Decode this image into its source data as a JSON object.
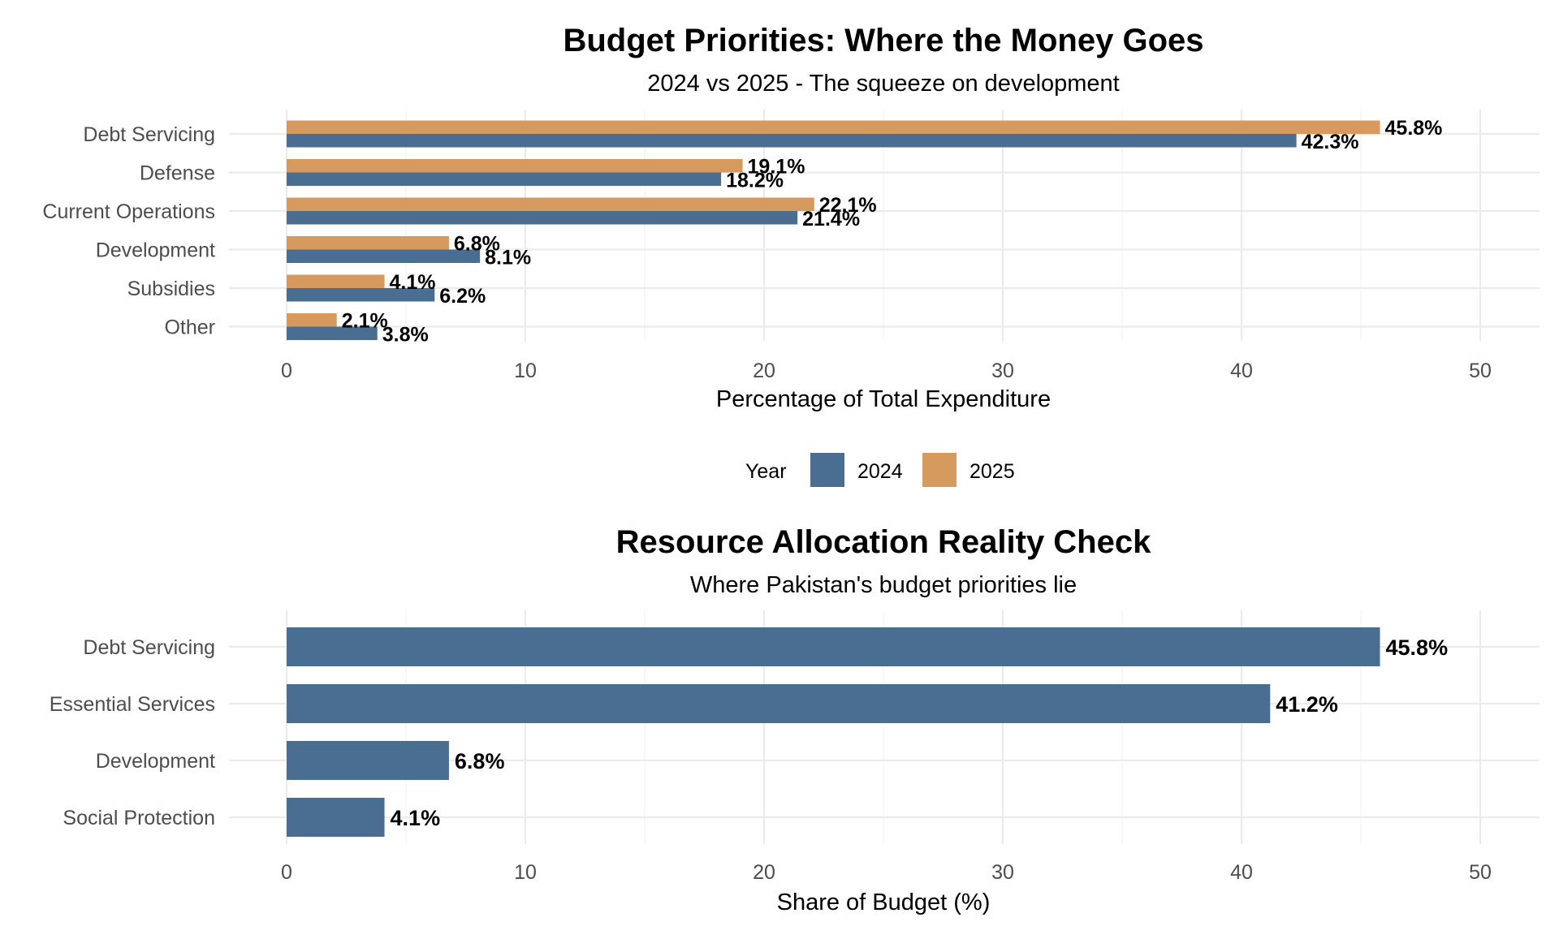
{
  "chart_data": [
    {
      "type": "bar",
      "orientation": "horizontal",
      "title": "Budget Priorities: Where the Money Goes",
      "subtitle": "2024 vs 2025 - The squeeze on development",
      "xlabel": "Percentage of Total Expenditure",
      "ylabel": "",
      "categories": [
        "Debt Servicing",
        "Defense",
        "Current Operations",
        "Development",
        "Subsidies",
        "Other"
      ],
      "series": [
        {
          "name": "2024",
          "color": "#4a6d92",
          "values": [
            42.3,
            18.2,
            21.4,
            8.1,
            6.2,
            3.8
          ],
          "labels": [
            "42.3%",
            "18.2%",
            "21.4%",
            "8.1%",
            "6.2%",
            "3.8%"
          ]
        },
        {
          "name": "2025",
          "color": "#d69a5f",
          "values": [
            45.8,
            19.1,
            22.1,
            6.8,
            4.1,
            2.1
          ],
          "labels": [
            "45.8%",
            "19.1%",
            "22.1%",
            "6.8%",
            "4.1%",
            "2.1%"
          ]
        }
      ],
      "xlim": [
        0,
        50
      ],
      "xticks": [
        0,
        10,
        20,
        30,
        40,
        50
      ],
      "grid": true,
      "legend": {
        "title": "Year",
        "position": "bottom",
        "items": [
          "2024",
          "2025"
        ]
      }
    },
    {
      "type": "bar",
      "orientation": "horizontal",
      "title": "Resource Allocation Reality Check",
      "subtitle": "Where Pakistan's budget priorities lie",
      "xlabel": "Share of Budget (%)",
      "ylabel": "",
      "categories": [
        "Debt Servicing",
        "Essential Services",
        "Development",
        "Social Protection"
      ],
      "values": [
        45.8,
        41.2,
        6.8,
        4.1
      ],
      "labels": [
        "45.8%",
        "41.2%",
        "6.8%",
        "4.1%"
      ],
      "color": "#4a6d92",
      "xlim": [
        0,
        50
      ],
      "xticks": [
        0,
        10,
        20,
        30,
        40,
        50
      ],
      "grid": true
    }
  ]
}
